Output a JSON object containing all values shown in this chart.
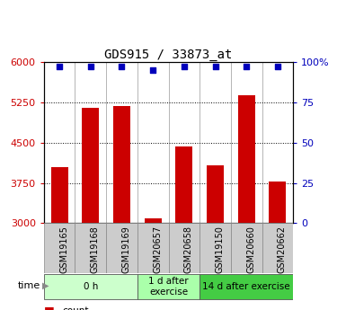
{
  "title": "GDS915 / 33873_at",
  "samples": [
    "GSM19165",
    "GSM19168",
    "GSM19169",
    "GSM20657",
    "GSM20658",
    "GSM19150",
    "GSM20660",
    "GSM20662"
  ],
  "counts": [
    4050,
    5150,
    5180,
    3090,
    4420,
    4080,
    5380,
    3780
  ],
  "percentile_ranks": [
    97,
    97,
    97,
    95,
    97,
    97,
    97,
    97
  ],
  "groups": [
    {
      "label": "0 h",
      "indices": [
        0,
        1,
        2
      ],
      "color": "#ccffcc",
      "edgecolor": "#aaddaa"
    },
    {
      "label": "1 d after\nexercise",
      "indices": [
        3,
        4
      ],
      "color": "#aaffaa",
      "edgecolor": "#88cc88"
    },
    {
      "label": "14 d after exercise",
      "indices": [
        5,
        6,
        7
      ],
      "color": "#44cc44",
      "edgecolor": "#33aa33"
    }
  ],
  "ylim_left": [
    3000,
    6000
  ],
  "ylim_right": [
    0,
    100
  ],
  "yticks_left": [
    3000,
    3750,
    4500,
    5250,
    6000
  ],
  "yticks_right": [
    0,
    25,
    50,
    75,
    100
  ],
  "bar_color": "#cc0000",
  "dot_color": "#0000bb",
  "bar_width": 0.55,
  "grid_color": "#000000",
  "background_color": "#ffffff",
  "plot_bg": "#ffffff",
  "legend_count_color": "#cc0000",
  "legend_pct_color": "#0000bb",
  "xtick_bg": "#cccccc",
  "group_colors": [
    "#ccffcc",
    "#aaffaa",
    "#44cc44"
  ]
}
